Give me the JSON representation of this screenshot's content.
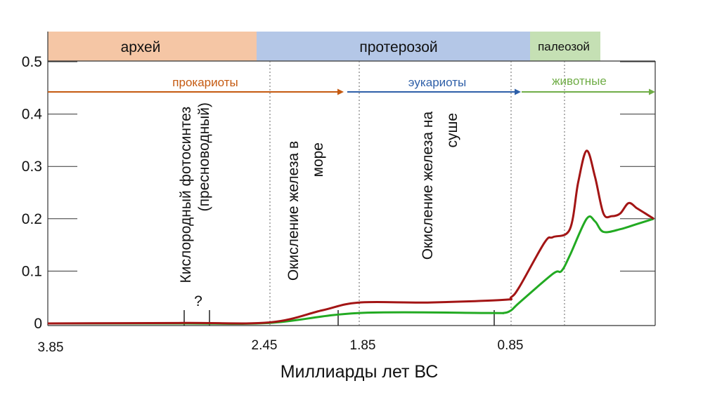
{
  "chart_data": {
    "type": "line",
    "xlabel": "Миллиарды лет ВС",
    "ylabel": "",
    "ylim": [
      0,
      0.5
    ],
    "x_tick_labels": [
      "3.85",
      "2.45",
      "1.85",
      "0.85"
    ],
    "y_tick_labels": [
      "0",
      "0.1",
      "0.2",
      "0.3",
      "0.4",
      "0.5"
    ],
    "grid": false,
    "eras": [
      {
        "label": "архей",
        "color": "#f5c6a5"
      },
      {
        "label": "протерозой",
        "color": "#b4c7e7"
      },
      {
        "label": "палеозой",
        "color": "#c5e0b4"
      }
    ],
    "life_arrows": [
      {
        "label": "прокариоты",
        "color": "#c55a11"
      },
      {
        "label": "эукариоты",
        "color": "#2e5fa8"
      },
      {
        "label": "животные",
        "color": "#70ad47"
      }
    ],
    "events": [
      {
        "label": "Кислородный фотосинтез (пресноводный)",
        "note": "?"
      },
      {
        "label": "Окисление железа в море"
      },
      {
        "label": "Окисление железа на суше"
      }
    ],
    "series": [
      {
        "color": "#a31515",
        "x": [
          3.85,
          3.0,
          2.45,
          2.1,
          1.85,
          1.4,
          0.9,
          0.85,
          0.8,
          0.65,
          0.6,
          0.5,
          0.45,
          0.4,
          0.35,
          0.3,
          0.25,
          0.2,
          0.15,
          0.1,
          0.05,
          0.0
        ],
        "y": [
          0.0,
          0.001,
          0.002,
          0.025,
          0.04,
          0.04,
          0.045,
          0.05,
          0.07,
          0.155,
          0.165,
          0.18,
          0.27,
          0.33,
          0.28,
          0.21,
          0.205,
          0.21,
          0.23,
          0.22,
          0.21,
          0.2
        ]
      },
      {
        "color": "#22aa22",
        "x": [
          3.85,
          3.0,
          2.45,
          1.85,
          1.0,
          0.9,
          0.85,
          0.8,
          0.6,
          0.55,
          0.5,
          0.4,
          0.35,
          0.3,
          0.2,
          0.1,
          0.0
        ],
        "y": [
          0.0,
          0.0,
          0.001,
          0.02,
          0.02,
          0.02,
          0.025,
          0.04,
          0.095,
          0.1,
          0.13,
          0.2,
          0.195,
          0.175,
          0.18,
          0.19,
          0.2
        ]
      }
    ]
  }
}
